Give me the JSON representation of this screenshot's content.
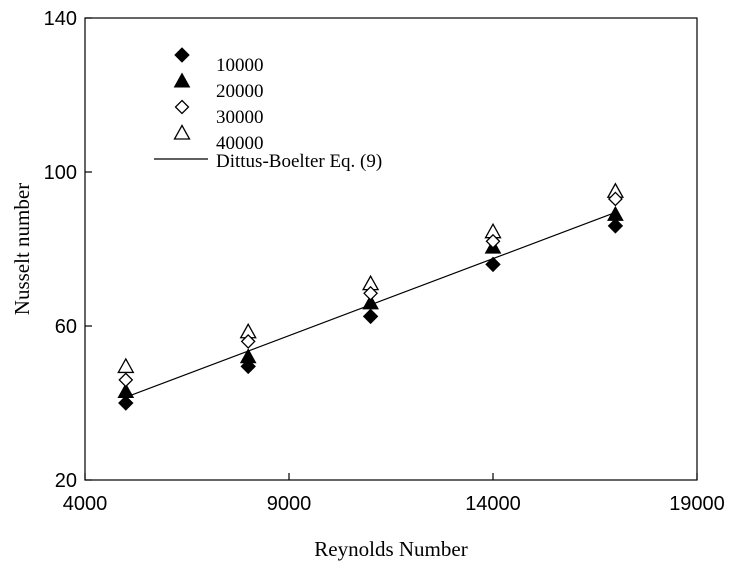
{
  "chart_data": {
    "type": "scatter",
    "title": "",
    "xlabel": "Reynolds Number",
    "ylabel": "Nusselt number",
    "xlim": [
      4000,
      19000
    ],
    "ylim": [
      20,
      140
    ],
    "xticks": [
      "4000",
      "9000",
      "14000",
      "19000"
    ],
    "yticks": [
      "20",
      "60",
      "100",
      "140"
    ],
    "grid": false,
    "legend_placement": "top-left",
    "x": [
      5000,
      8000,
      11000,
      14000,
      17000
    ],
    "series": [
      {
        "name": "10000",
        "marker": "diamond-filled",
        "values": [
          40,
          49.5,
          62.5,
          76,
          86
        ]
      },
      {
        "name": "20000",
        "marker": "triangle-filled",
        "values": [
          43,
          52,
          66,
          80.5,
          89
        ]
      },
      {
        "name": "30000",
        "marker": "diamond-open",
        "values": [
          46,
          56,
          68.5,
          82,
          93
        ]
      },
      {
        "name": "40000",
        "marker": "triangle-open",
        "values": [
          49.5,
          58.5,
          71,
          84.5,
          95
        ]
      }
    ],
    "line": {
      "name": "Dittus-Boelter Eq. (9)",
      "x": [
        5000,
        17000
      ],
      "y": [
        41.5,
        89.5
      ]
    }
  }
}
